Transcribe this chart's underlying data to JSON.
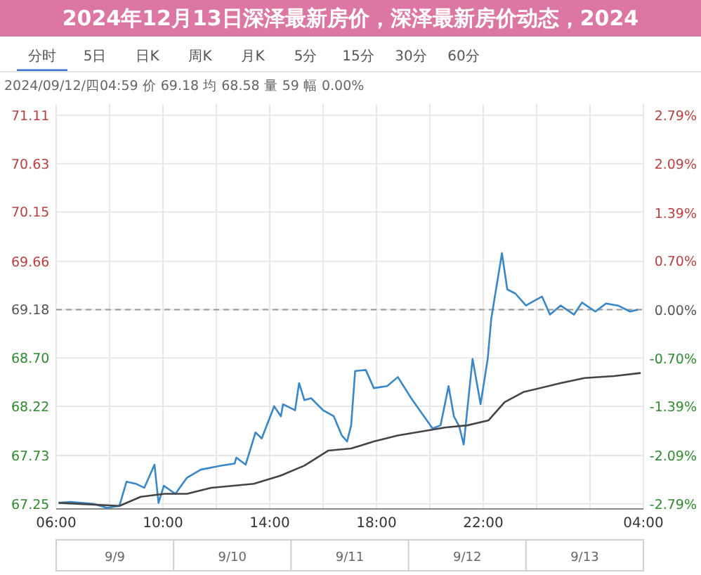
{
  "chart_data": {
    "type": "line",
    "title": "2024年12月13日深泽最新房价，深泽最新房价动态，2024",
    "annotations": [
      "分时",
      "5日",
      "日K",
      "周K",
      "月K",
      "5分",
      "15分",
      "30分",
      "60分",
      "2024/09/12/四04:59  价 69.18  均 68.58  量 59  幅 0.00%",
      "9/9",
      "9/10",
      "9/11",
      "9/12",
      "9/13"
    ],
    "xlim": [
      "2024-09-11T06:00",
      "2024-09-12T04:00"
    ],
    "xticks": [
      {
        "value": "2024-09-11T06:00",
        "label": "06:00"
      },
      {
        "value": "2024-09-11T08:00",
        "label": null
      },
      {
        "value": "2024-09-11T10:00",
        "label": "10:00"
      },
      {
        "value": "2024-09-11T12:00",
        "label": null
      },
      {
        "value": "2024-09-11T14:00",
        "label": "14:00"
      },
      {
        "value": "2024-09-11T16:00",
        "label": null
      },
      {
        "value": "2024-09-11T18:00",
        "label": "18:00"
      },
      {
        "value": "2024-09-11T20:00",
        "label": null
      },
      {
        "value": "2024-09-11T22:00",
        "label": "22:00"
      },
      {
        "value": "2024-09-12T00:00",
        "label": null
      },
      {
        "value": "2024-09-12T02:00",
        "label": null
      },
      {
        "value": "2024-09-12T04:00",
        "label": "04:00"
      }
    ],
    "ylim": [
      67.2,
      71.11
    ],
    "yticks": [
      67.25,
      67.73,
      68.22,
      {
        "value": 68.7,
        "label": "68.70"
      },
      69.18,
      69.66,
      70.15,
      70.63,
      71.11
    ],
    "y2lim": [
      -2.86,
      2.79
    ],
    "y2ticks": [
      {
        "value": -2.79,
        "label": "-2.79%"
      },
      {
        "value": -2.09,
        "label": "-2.09%"
      },
      {
        "value": -1.39,
        "label": "-1.39%"
      },
      {
        "value": -0.7,
        "label": "-0.70%"
      },
      {
        "value": 0,
        "label": "0.00%"
      },
      {
        "value": 0.7,
        "label": "0.70%"
      },
      {
        "value": 1.39,
        "label": "1.39%"
      },
      {
        "value": 2.09,
        "label": "2.09%"
      },
      {
        "value": 2.79,
        "label": "2.79%"
      }
    ],
    "grid": true,
    "marker": "none",
    "line_style": "solid",
    "ref_lines": [
      {
        "axis": "y",
        "value": 69.18,
        "color": "#9a9a9a",
        "line_style": "dashed"
      }
    ],
    "series": [
      {
        "color": "#3a87c8",
        "x": [
          "2024-09-11T06:05",
          "2024-09-11T06:32",
          "2024-09-11T07:24",
          "2024-09-11T07:54",
          "2024-09-11T08:22",
          "2024-09-11T08:38",
          "2024-09-11T08:59",
          "2024-09-11T09:18",
          "2024-09-11T09:41",
          "2024-09-11T09:50",
          "2024-09-11T10:02",
          "2024-09-11T10:28",
          "2024-09-11T10:54",
          "2024-09-11T11:25",
          "2024-09-11T12:10",
          "2024-09-11T12:41",
          "2024-09-11T12:45",
          "2024-09-11T13:06",
          "2024-09-11T13:28",
          "2024-09-11T13:42",
          "2024-09-11T14:10",
          "2024-09-11T14:25",
          "2024-09-11T14:30",
          "2024-09-11T14:57",
          "2024-09-11T15:06",
          "2024-09-11T15:18",
          "2024-09-11T15:33",
          "2024-09-11T16:00",
          "2024-09-11T16:24",
          "2024-09-11T16:42",
          "2024-09-11T16:54",
          "2024-09-11T17:03",
          "2024-09-11T17:12",
          "2024-09-11T17:36",
          "2024-09-11T17:54",
          "2024-09-11T18:24",
          "2024-09-11T18:48",
          "2024-09-11T19:18",
          "2024-09-11T19:42",
          "2024-09-11T20:06",
          "2024-09-11T20:24",
          "2024-09-11T20:42",
          "2024-09-11T20:54",
          "2024-09-11T21:06",
          "2024-09-11T21:16",
          "2024-09-11T21:36",
          "2024-09-11T21:54",
          "2024-09-11T22:10",
          "2024-09-11T22:18",
          "2024-09-11T22:42",
          "2024-09-11T22:54",
          "2024-09-11T23:12",
          "2024-09-11T23:36",
          "2024-09-12T00:12",
          "2024-09-12T00:30",
          "2024-09-12T00:54",
          "2024-09-12T01:24",
          "2024-09-12T01:42",
          "2024-09-12T02:12",
          "2024-09-12T02:36",
          "2024-09-12T03:03",
          "2024-09-12T03:30",
          "2024-09-12T03:48"
        ],
        "values": [
          67.26,
          67.27,
          67.25,
          67.21,
          67.23,
          67.47,
          67.45,
          67.41,
          67.64,
          67.26,
          67.43,
          67.35,
          67.51,
          67.59,
          67.63,
          67.65,
          67.71,
          67.64,
          67.96,
          67.9,
          68.22,
          68.12,
          68.24,
          68.18,
          68.45,
          68.28,
          68.3,
          68.18,
          68.12,
          67.93,
          67.87,
          68.03,
          68.57,
          68.58,
          68.4,
          68.42,
          68.51,
          68.3,
          68.15,
          68.0,
          68.03,
          68.42,
          68.12,
          68.02,
          67.84,
          68.69,
          68.24,
          68.69,
          69.09,
          69.74,
          69.38,
          69.34,
          69.22,
          69.31,
          69.13,
          69.22,
          69.13,
          69.25,
          69.16,
          69.24,
          69.22,
          69.16,
          69.18
        ]
      },
      {
        "color": "#444444",
        "x": [
          "2024-09-11T06:06",
          "2024-09-11T08:22",
          "2024-09-11T09:10",
          "2024-09-11T10:03",
          "2024-09-11T10:54",
          "2024-09-11T11:48",
          "2024-09-11T13:24",
          "2024-09-11T14:24",
          "2024-09-11T15:18",
          "2024-09-11T16:12",
          "2024-09-11T17:03",
          "2024-09-11T17:54",
          "2024-09-11T18:48",
          "2024-09-11T19:42",
          "2024-09-11T20:36",
          "2024-09-11T21:24",
          "2024-09-11T22:12",
          "2024-09-11T22:48",
          "2024-09-11T23:30",
          "2024-09-12T00:54",
          "2024-09-12T01:48",
          "2024-09-12T02:54",
          "2024-09-12T03:54"
        ],
        "values": [
          67.26,
          67.23,
          67.32,
          67.35,
          67.35,
          67.41,
          67.45,
          67.53,
          67.63,
          67.78,
          67.8,
          67.87,
          67.93,
          67.97,
          68.01,
          68.03,
          68.08,
          68.26,
          68.36,
          68.45,
          68.5,
          68.52,
          68.55
        ]
      }
    ]
  }
}
